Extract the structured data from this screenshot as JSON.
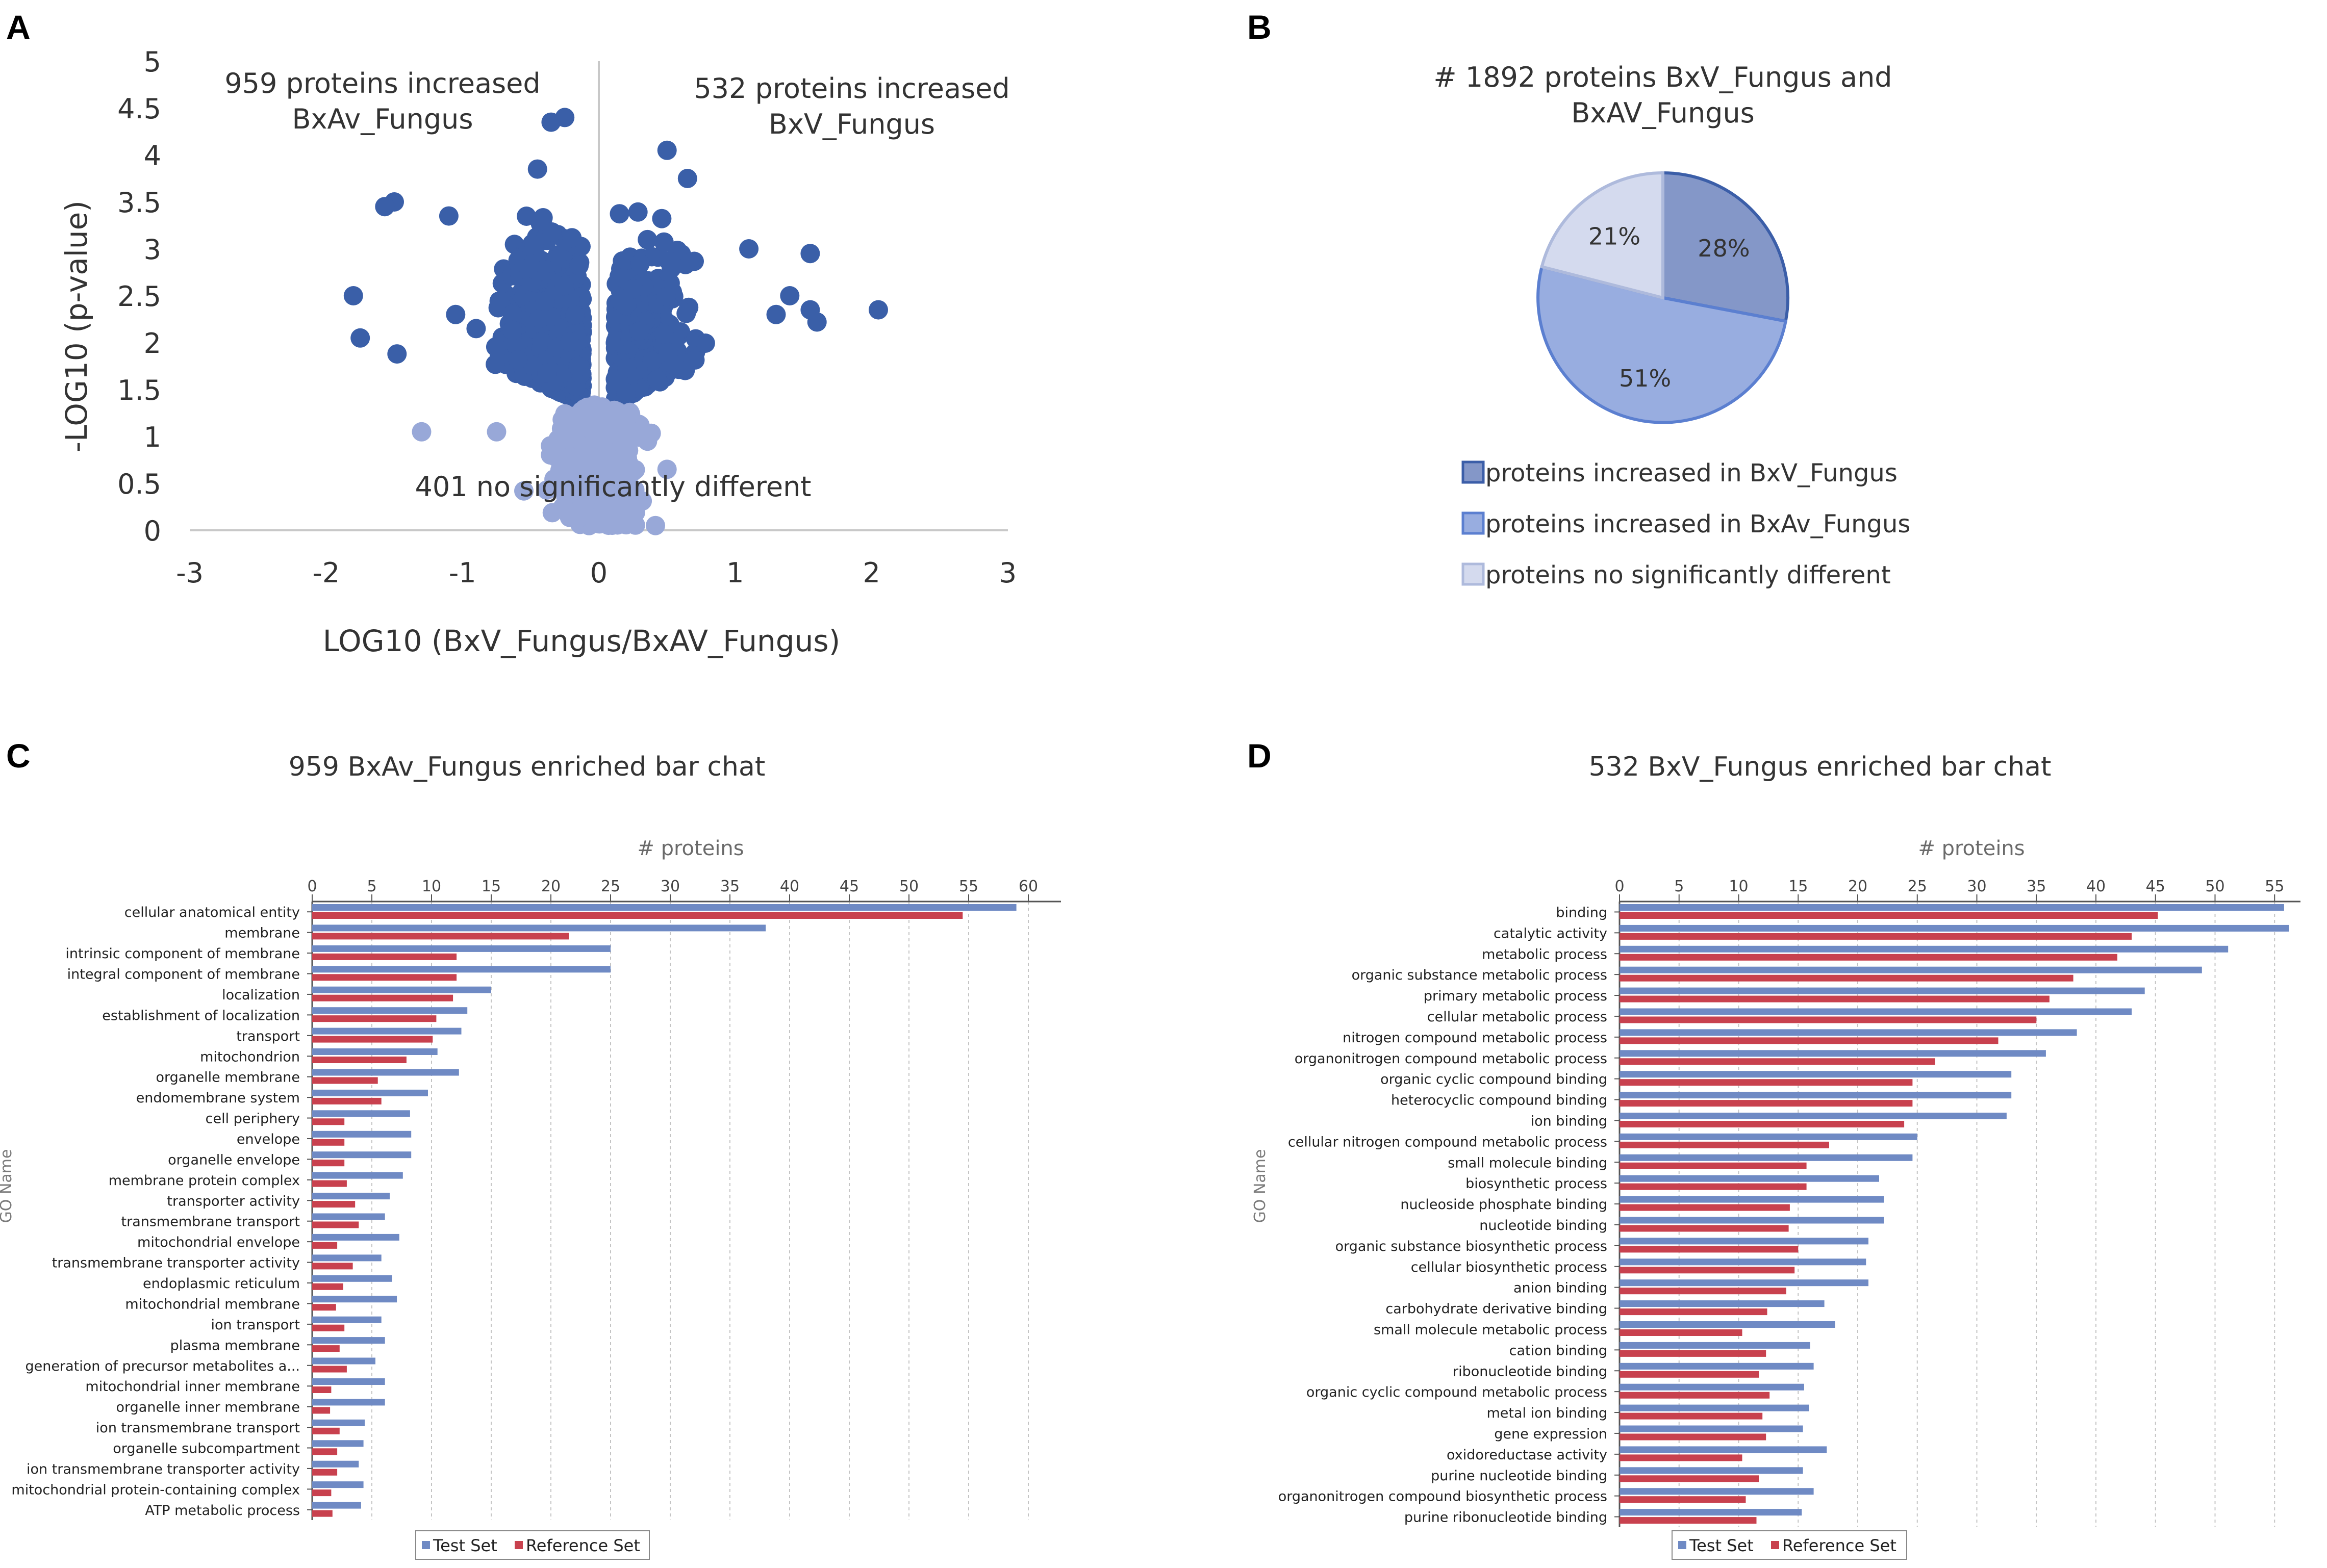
{
  "panels": {
    "A": {
      "letter": "A"
    },
    "B": {
      "letter": "B"
    },
    "C": {
      "letter": "C"
    },
    "D": {
      "letter": "D"
    }
  },
  "chart_data": [
    {
      "id": "volcano",
      "type": "scatter",
      "title": "",
      "xlabel": "LOG10 (BxV_Fungus/BxAV_Fungus)",
      "ylabel": "-LOG10 (p-value)",
      "xlim": [
        -3,
        3
      ],
      "ylim": [
        0,
        5
      ],
      "xticks": [
        -3,
        -2,
        -1,
        0,
        1,
        2,
        3
      ],
      "yticks": [
        0,
        0.5,
        1,
        1.5,
        2,
        2.5,
        3,
        3.5,
        4,
        4.5,
        5
      ],
      "yticklabels": [
        "0",
        "0.5",
        "1",
        "1.5",
        "2",
        "2.5",
        "3",
        "3.5",
        "4",
        "4.5",
        "5"
      ],
      "significance_threshold": 1.3,
      "colors": {
        "significant": "#3a5fa8",
        "not_significant": "#98a8d8"
      },
      "annotations": {
        "left_count": "959 proteins increased",
        "left_group": "BxAv_Fungus",
        "right_count": "532 proteins increased",
        "right_group": "BxV_Fungus",
        "bottom": "401 no significantly different"
      },
      "outliers": [
        [
          -1.8,
          2.5
        ],
        [
          -1.75,
          2.05
        ],
        [
          -1.5,
          3.5
        ],
        [
          -1.57,
          3.45
        ],
        [
          -1.48,
          1.88
        ],
        [
          -1.3,
          1.05
        ],
        [
          -0.75,
          1.05
        ],
        [
          -0.55,
          0.42
        ],
        [
          -0.35,
          4.35
        ],
        [
          -0.25,
          4.4
        ],
        [
          0.5,
          4.05
        ],
        [
          0.5,
          0.65
        ],
        [
          1.55,
          2.35
        ],
        [
          1.6,
          2.22
        ],
        [
          1.55,
          2.95
        ],
        [
          2.05,
          2.35
        ],
        [
          1.4,
          2.5
        ],
        [
          1.3,
          2.3
        ],
        [
          1.1,
          3.0
        ],
        [
          0.65,
          3.75
        ],
        [
          -0.45,
          3.85
        ],
        [
          -0.9,
          2.15
        ],
        [
          -1.05,
          2.3
        ],
        [
          -1.1,
          3.35
        ]
      ]
    },
    {
      "id": "pie",
      "type": "pie",
      "title_line1": "# 1892 proteins BxV_Fungus and",
      "title_line2": "BxAV_Fungus",
      "labels": [
        "proteins increased in BxV_Fungus",
        "proteins increased in BxAv_Fungus",
        "proteins no significantly different"
      ],
      "values": [
        28,
        51,
        21
      ],
      "slice_labels": [
        "28%",
        "51%",
        "21%"
      ],
      "colors": [
        "#8497c8",
        "#98ade0",
        "#d4daee"
      ],
      "edge_colors": [
        "#3b5ea8",
        "#5b7fd0",
        "#aebadc"
      ],
      "legend": "below"
    },
    {
      "id": "bar_c",
      "type": "bar",
      "orientation": "horizontal",
      "title": "959 BxAv_Fungus enriched bar chat",
      "xlabel": "# proteins",
      "ylabel": "GO Name",
      "xlim": [
        0,
        60
      ],
      "xticks": [
        0,
        5,
        10,
        15,
        20,
        25,
        30,
        35,
        40,
        45,
        50,
        55,
        60
      ],
      "categories": [
        "cellular anatomical entity",
        "membrane",
        "intrinsic component of membrane",
        "integral component of membrane",
        "localization",
        "establishment of localization",
        "transport",
        "mitochondrion",
        "organelle membrane",
        "endomembrane system",
        "cell periphery",
        "envelope",
        "organelle envelope",
        "membrane protein complex",
        "transporter activity",
        "transmembrane transport",
        "mitochondrial envelope",
        "transmembrane transporter activity",
        "endoplasmic reticulum",
        "mitochondrial membrane",
        "ion transport",
        "plasma membrane",
        "generation of precursor metabolites a...",
        "mitochondrial inner membrane",
        "organelle inner membrane",
        "ion transmembrane transport",
        "organelle subcompartment",
        "ion transmembrane transporter activity",
        "mitochondrial protein-containing complex",
        "ATP metabolic process"
      ],
      "series": [
        {
          "name": "Test Set",
          "color": "#6f8ac4",
          "values": [
            59,
            38,
            25,
            25,
            15,
            13,
            12.5,
            10.5,
            12.3,
            9.7,
            8.2,
            8.3,
            8.3,
            7.6,
            6.5,
            6.1,
            7.3,
            5.8,
            6.7,
            7.1,
            5.8,
            6.1,
            5.3,
            6.1,
            6.1,
            4.4,
            4.3,
            3.9,
            4.3,
            4.1
          ]
        },
        {
          "name": "Reference Set",
          "color": "#c8414e",
          "values": [
            54.5,
            21.5,
            12.1,
            12.1,
            11.8,
            10.4,
            10.1,
            7.9,
            5.5,
            5.8,
            2.7,
            2.7,
            2.7,
            2.9,
            3.6,
            3.9,
            2.1,
            3.4,
            2.6,
            2.0,
            2.7,
            2.3,
            2.9,
            1.6,
            1.5,
            2.3,
            2.1,
            2.1,
            1.6,
            1.7
          ]
        }
      ]
    },
    {
      "id": "bar_d",
      "type": "bar",
      "orientation": "horizontal",
      "title": "532 BxV_Fungus enriched bar chat",
      "xlabel": "# proteins",
      "ylabel": "GO Name",
      "xlim": [
        0,
        57
      ],
      "xticks": [
        0,
        5,
        10,
        15,
        20,
        25,
        30,
        35,
        40,
        45,
        50,
        55
      ],
      "categories": [
        "binding",
        "catalytic activity",
        "metabolic process",
        "organic substance metabolic process",
        "primary metabolic process",
        "cellular metabolic process",
        "nitrogen compound metabolic process",
        "organonitrogen compound metabolic process",
        "organic cyclic compound binding",
        "heterocyclic compound binding",
        "ion binding",
        "cellular nitrogen compound metabolic process",
        "small molecule binding",
        "biosynthetic process",
        "nucleoside phosphate binding",
        "nucleotide binding",
        "organic substance biosynthetic process",
        "cellular biosynthetic process",
        "anion binding",
        "carbohydrate derivative binding",
        "small molecule metabolic process",
        "cation binding",
        "ribonucleotide binding",
        "organic cyclic compound metabolic process",
        "metal ion binding",
        "gene expression",
        "oxidoreductase activity",
        "purine nucleotide binding",
        "organonitrogen compound biosynthetic process",
        "purine ribonucleotide binding"
      ],
      "series": [
        {
          "name": "Test Set",
          "color": "#6f8ac4",
          "values": [
            55.8,
            56.2,
            51.1,
            48.9,
            44.1,
            43.0,
            38.4,
            35.8,
            32.9,
            32.9,
            32.5,
            25.0,
            24.6,
            21.8,
            22.2,
            22.2,
            20.9,
            20.7,
            20.9,
            17.2,
            18.1,
            16.0,
            16.3,
            15.5,
            15.9,
            15.4,
            17.4,
            15.4,
            16.3,
            15.3
          ]
        },
        {
          "name": "Reference Set",
          "color": "#c8414e",
          "values": [
            45.2,
            43.0,
            41.8,
            38.1,
            36.1,
            35.0,
            31.8,
            26.5,
            24.6,
            24.6,
            23.9,
            17.6,
            15.7,
            15.7,
            14.3,
            14.2,
            15.0,
            14.7,
            14.0,
            12.4,
            10.3,
            12.3,
            11.7,
            12.6,
            12.0,
            12.3,
            10.3,
            11.7,
            10.6,
            11.5
          ]
        }
      ]
    }
  ]
}
